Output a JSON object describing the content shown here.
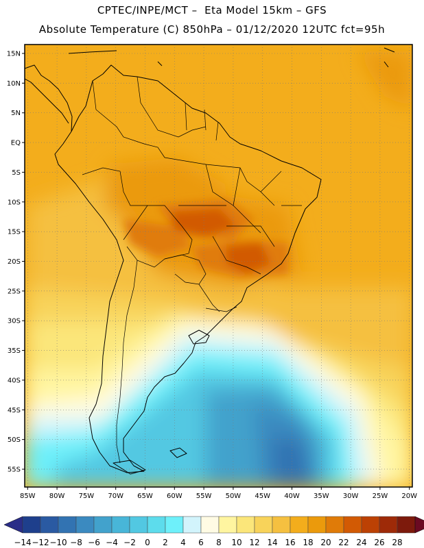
{
  "header": {
    "line1": "CPTEC/INPE/MCT –  Eta Model 15km – GFS",
    "line2": "Absolute Temperature (C) 850hPa – 01/12/2020 12UTC fct=95h"
  },
  "map": {
    "lon_range": [
      -85.5,
      -19.5
    ],
    "lat_range": [
      -58,
      16.5
    ],
    "lat_ticks": [
      {
        "value": 15,
        "label": "15N"
      },
      {
        "value": 10,
        "label": "10N"
      },
      {
        "value": 5,
        "label": "5N"
      },
      {
        "value": 0,
        "label": "EQ"
      },
      {
        "value": -5,
        "label": "5S"
      },
      {
        "value": -10,
        "label": "10S"
      },
      {
        "value": -15,
        "label": "15S"
      },
      {
        "value": -20,
        "label": "20S"
      },
      {
        "value": -25,
        "label": "25S"
      },
      {
        "value": -30,
        "label": "30S"
      },
      {
        "value": -35,
        "label": "35S"
      },
      {
        "value": -40,
        "label": "40S"
      },
      {
        "value": -45,
        "label": "45S"
      },
      {
        "value": -50,
        "label": "50S"
      },
      {
        "value": -55,
        "label": "55S"
      }
    ],
    "lon_ticks": [
      {
        "value": -85,
        "label": "85W"
      },
      {
        "value": -80,
        "label": "80W"
      },
      {
        "value": -75,
        "label": "75W"
      },
      {
        "value": -70,
        "label": "70W"
      },
      {
        "value": -65,
        "label": "65W"
      },
      {
        "value": -60,
        "label": "60W"
      },
      {
        "value": -55,
        "label": "55W"
      },
      {
        "value": -50,
        "label": "50W"
      },
      {
        "value": -45,
        "label": "45W"
      },
      {
        "value": -40,
        "label": "40W"
      },
      {
        "value": -35,
        "label": "35W"
      },
      {
        "value": -30,
        "label": "30W"
      },
      {
        "value": -25,
        "label": "25W"
      },
      {
        "value": -20,
        "label": "20W"
      }
    ]
  },
  "colorbar": {
    "labels": [
      "-14",
      "-12",
      "-10",
      "-8",
      "-6",
      "-4",
      "-2",
      "0",
      "2",
      "4",
      "6",
      "8",
      "10",
      "12",
      "14",
      "16",
      "18",
      "20",
      "22",
      "24",
      "26",
      "28"
    ],
    "colors": [
      "#1e3f8c",
      "#2a5aa2",
      "#3273b2",
      "#3b8ac0",
      "#42a2cc",
      "#48b6d8",
      "#52c8e2",
      "#5ddcec",
      "#6ef0fa",
      "#d2f4fc",
      "#fffbe4",
      "#fff5a0",
      "#fbe67a",
      "#f8d35a",
      "#f5c040",
      "#f3ad1c",
      "#eb9a0c",
      "#e07b08",
      "#d25a04",
      "#bc4104",
      "#9e2a08",
      "#7d1a0c"
    ],
    "under_color": "#2a2d88",
    "over_color": "#6b0a22"
  }
}
